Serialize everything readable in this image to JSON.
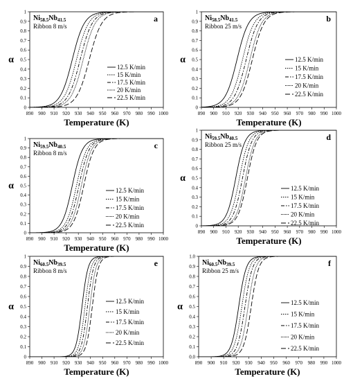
{
  "chart_data": [
    {
      "type": "line",
      "panel": "a",
      "composition": {
        "a": "Ni",
        "a_sub": "58.5",
        "b": "Nb",
        "b_sub": "41.5"
      },
      "ribbon": "Ribbon 8 m/s",
      "xlabel": "Temperature (K)",
      "ylabel": "α",
      "xlim": [
        890,
        1000
      ],
      "ylim": [
        0,
        1
      ],
      "xticks": [
        "890",
        "900",
        "910",
        "920",
        "930",
        "940",
        "950",
        "960",
        "970",
        "980",
        "990",
        "1000"
      ],
      "yticks": [
        "0",
        "0.1",
        "0.2",
        "0.3",
        "0.4",
        "0.5",
        "0.6",
        "0.7",
        "0.8",
        "0.9",
        "1"
      ],
      "legend_position": "bottom-right",
      "series": [
        {
          "name": "12.5 K/min",
          "t50": 925.0,
          "width": 5.0,
          "dash": ""
        },
        {
          "name": "15 K/min",
          "t50": 928.5,
          "width": 5.0,
          "dash": "1.5,1.5"
        },
        {
          "name": "17.5 K/min",
          "t50": 931.5,
          "width": 5.0,
          "dash": "5,2,1.5,2"
        },
        {
          "name": "20 K/min",
          "t50": 934.0,
          "width": 5.0,
          "dash": "1,1"
        },
        {
          "name": "22.5 K/min",
          "t50": 939.0,
          "width": 5.2,
          "dash": "7,3"
        }
      ]
    },
    {
      "type": "line",
      "panel": "b",
      "composition": {
        "a": "Ni",
        "a_sub": "58.5",
        "b": "Nb",
        "b_sub": "41.5"
      },
      "ribbon": "Ribbon 25 m/s",
      "xlabel": "Temperature (K)",
      "ylabel": "α",
      "xlim": [
        890,
        1000
      ],
      "ylim": [
        0,
        1
      ],
      "xticks": [
        "890",
        "900",
        "910",
        "920",
        "930",
        "940",
        "950",
        "960",
        "970",
        "980",
        "990",
        "1000"
      ],
      "yticks": [
        "0",
        "0.1",
        "0.2",
        "0.3",
        "0.4",
        "0.5",
        "0.6",
        "0.7",
        "0.8",
        "0.9",
        "1"
      ],
      "legend_position": "right",
      "series": [
        {
          "name": "12.5 K/min",
          "t50": 919.0,
          "width": 4.8,
          "dash": ""
        },
        {
          "name": "15 K/min",
          "t50": 923.5,
          "width": 4.8,
          "dash": "1.5,1.5"
        },
        {
          "name": "17.5 K/min",
          "t50": 926.5,
          "width": 4.8,
          "dash": "5,2,1.5,2"
        },
        {
          "name": "20 K/min",
          "t50": 929.5,
          "width": 4.8,
          "dash": "1,1"
        },
        {
          "name": "22.5 K/min",
          "t50": 931.5,
          "width": 4.8,
          "dash": "7,3"
        }
      ]
    },
    {
      "type": "line",
      "panel": "c",
      "composition": {
        "a": "Ni",
        "a_sub": "59.5",
        "b": "Nb",
        "b_sub": "40.5"
      },
      "ribbon": "Ribbon 8 m/s",
      "xlabel": "Temperature (K)",
      "ylabel": "α",
      "xlim": [
        890,
        1000
      ],
      "ylim": [
        0,
        1
      ],
      "xticks": [
        "890",
        "900",
        "910",
        "920",
        "930",
        "940",
        "950",
        "960",
        "970",
        "980",
        "990",
        "1000"
      ],
      "yticks": [
        "0",
        "0.1",
        "0.2",
        "0.3",
        "0.4",
        "0.5",
        "0.6",
        "0.7",
        "0.8",
        "0.9",
        "1"
      ],
      "legend_position": "bottom-right",
      "series": [
        {
          "name": "12.5 K/min",
          "t50": 925.0,
          "width": 4.2,
          "dash": ""
        },
        {
          "name": "15 K/min",
          "t50": 928.5,
          "width": 4.2,
          "dash": "1.5,1.5"
        },
        {
          "name": "17.5 K/min",
          "t50": 930.5,
          "width": 4.2,
          "dash": "5,2,1.5,2"
        },
        {
          "name": "20 K/min",
          "t50": 932.5,
          "width": 4.2,
          "dash": "1,1"
        },
        {
          "name": "22.5 K/min",
          "t50": 934.5,
          "width": 4.2,
          "dash": "7,3"
        }
      ]
    },
    {
      "type": "line",
      "panel": "d",
      "composition": {
        "a": "Ni",
        "a_sub": "59.5",
        "b": "Nb",
        "b_sub": "40.5"
      },
      "ribbon": "Ribbon 25 m/s",
      "xlabel": "Temperature (K)",
      "ylabel": "α",
      "xlim": [
        890,
        1000
      ],
      "ylim": [
        0,
        1
      ],
      "xticks": [
        "890",
        "900",
        "910",
        "920",
        "930",
        "940",
        "950",
        "960",
        "970",
        "980",
        "990",
        "1000"
      ],
      "yticks": [
        "0",
        "0.1",
        "0.2",
        "0.3",
        "0.4",
        "0.5",
        "0.6",
        "0.7",
        "0.8",
        "0.9",
        "1"
      ],
      "legend_position": "bottom-right",
      "series": [
        {
          "name": "12.5 K/min",
          "t50": 918.0,
          "width": 3.8,
          "dash": ""
        },
        {
          "name": "15 K/min",
          "t50": 921.0,
          "width": 3.8,
          "dash": "1.5,1.5"
        },
        {
          "name": "17.5 K/min",
          "t50": 923.5,
          "width": 3.8,
          "dash": "5,2,1.5,2"
        },
        {
          "name": "20 K/min",
          "t50": 926.0,
          "width": 3.8,
          "dash": "1,1"
        },
        {
          "name": "22.5 K/min",
          "t50": 927.5,
          "width": 3.8,
          "dash": "7,3"
        }
      ]
    },
    {
      "type": "line",
      "panel": "e",
      "composition": {
        "a": "Ni",
        "a_sub": "60.5",
        "b": "Nb",
        "b_sub": "39.5"
      },
      "ribbon": "Ribbon 8 m/s",
      "xlabel": "Temperature (K)",
      "ylabel": "α",
      "xlim": [
        890,
        1000
      ],
      "ylim": [
        0,
        1
      ],
      "xticks": [
        "890",
        "900",
        "910",
        "920",
        "930",
        "940",
        "950",
        "960",
        "970",
        "980",
        "990",
        "1000"
      ],
      "yticks": [
        "0",
        "0.1",
        "0.2",
        "0.3",
        "0.4",
        "0.5",
        "0.6",
        "0.7",
        "0.8",
        "0.9",
        "1"
      ],
      "legend_position": "bottom-right",
      "series": [
        {
          "name": "12.5 K/min",
          "t50": 933.0,
          "width": 2.5,
          "dash": ""
        },
        {
          "name": "15 K/min",
          "t50": 935.5,
          "width": 2.5,
          "dash": "1.5,1.5"
        },
        {
          "name": "17.5 K/min",
          "t50": 937.5,
          "width": 2.5,
          "dash": "5,2,1.5,2"
        },
        {
          "name": "20 K/min",
          "t50": 939.5,
          "width": 2.5,
          "dash": "1,1"
        },
        {
          "name": "22.5 K/min",
          "t50": 941.5,
          "width": 2.5,
          "dash": "7,3"
        }
      ]
    },
    {
      "type": "line",
      "panel": "f",
      "composition": {
        "a": "Ni",
        "a_sub": "60.5",
        "b": "Nb",
        "b_sub": "39.5"
      },
      "ribbon": "Ribbon 25 m/s",
      "xlabel": "Temperature (K)",
      "ylabel": "α",
      "xlim": [
        890,
        1000
      ],
      "ylim": [
        0,
        1
      ],
      "xticks": [
        "890",
        "900",
        "910",
        "920",
        "930",
        "940",
        "950",
        "960",
        "970",
        "980",
        "990",
        "1000"
      ],
      "yticks": [
        "0.0",
        "0.1",
        "0.2",
        "0.3",
        "0.4",
        "0.5",
        "0.6",
        "0.7",
        "0.8",
        "0.9",
        "1.0"
      ],
      "legend_position": "bottom-right",
      "series": [
        {
          "name": "12.5 K/min",
          "t50": 922.0,
          "width": 3.0,
          "dash": ""
        },
        {
          "name": "15 K/min",
          "t50": 924.5,
          "width": 3.0,
          "dash": "1.5,1.5"
        },
        {
          "name": "17.5 K/min",
          "t50": 927.0,
          "width": 3.0,
          "dash": "5,2,1.5,2"
        },
        {
          "name": "20 K/min",
          "t50": 929.5,
          "width": 3.0,
          "dash": "1,1"
        },
        {
          "name": "22.5 K/min",
          "t50": 932.0,
          "width": 3.0,
          "dash": "7,3"
        }
      ]
    }
  ]
}
